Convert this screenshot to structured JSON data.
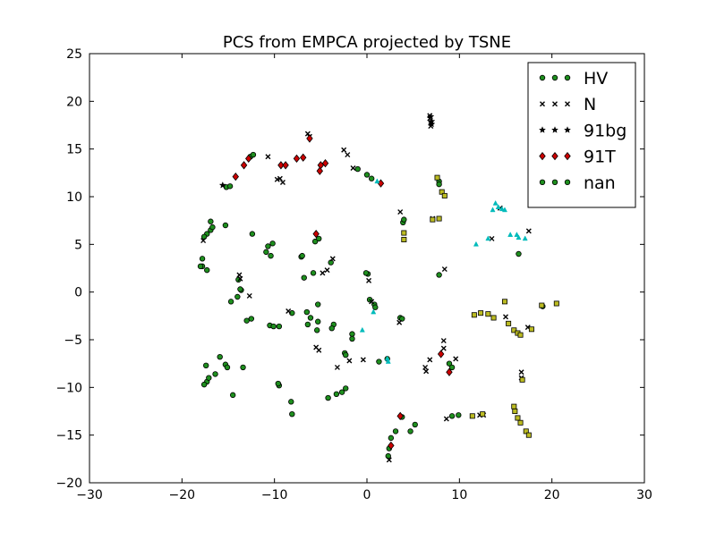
{
  "chart_data": {
    "type": "scatter",
    "title": "PCS from EMPCA projected by TSNE",
    "xlabel": "",
    "ylabel": "",
    "xlim": [
      -30,
      30
    ],
    "ylim": [
      -20,
      25
    ],
    "xticks": [
      -30,
      -20,
      -10,
      0,
      10,
      20,
      30
    ],
    "yticks": [
      -20,
      -15,
      -10,
      -5,
      0,
      5,
      10,
      15,
      20,
      25
    ],
    "grid": false,
    "legend_position": "top-right",
    "legend": [
      "HV",
      "N",
      "91bg",
      "91T",
      "nan"
    ],
    "series": [
      {
        "name": "HV",
        "marker": "circle",
        "color": "#1e8f1e",
        "points": [
          [
            -12.6,
            14.2
          ],
          [
            -12.3,
            14.4
          ],
          [
            -15.2,
            11.0
          ],
          [
            -14.8,
            11.1
          ],
          [
            -12.4,
            6.1
          ],
          [
            -16.9,
            6.5
          ],
          [
            -16.7,
            6.8
          ],
          [
            -16.9,
            7.4
          ],
          [
            -17.3,
            6.1
          ],
          [
            -17.6,
            5.8
          ],
          [
            -15.3,
            7.0
          ],
          [
            -17.8,
            3.5
          ],
          [
            -17.8,
            2.7
          ],
          [
            -17.3,
            2.3
          ],
          [
            -18.0,
            2.7
          ],
          [
            -14.0,
            -0.5
          ],
          [
            -13.6,
            0.2
          ],
          [
            -13.9,
            1.3
          ],
          [
            -13.7,
            0.3
          ],
          [
            -14.7,
            -1.0
          ],
          [
            -13.0,
            -3.0
          ],
          [
            -12.5,
            -2.8
          ],
          [
            -10.7,
            4.8
          ],
          [
            -10.9,
            4.2
          ],
          [
            -10.2,
            5.1
          ],
          [
            -10.4,
            3.8
          ],
          [
            -10.5,
            -3.5
          ],
          [
            -10.1,
            -3.6
          ],
          [
            -9.5,
            -3.6
          ],
          [
            -8.1,
            -2.2
          ],
          [
            -7.1,
            3.7
          ],
          [
            -7.0,
            3.8
          ],
          [
            -6.8,
            1.5
          ],
          [
            -6.5,
            -2.1
          ],
          [
            -6.1,
            -2.7
          ],
          [
            -6.4,
            -3.4
          ],
          [
            -5.6,
            5.3
          ],
          [
            -5.2,
            5.6
          ],
          [
            -5.8,
            2.0
          ],
          [
            -5.3,
            -1.3
          ],
          [
            -5.3,
            -3.1
          ],
          [
            -5.4,
            -4.0
          ],
          [
            -3.9,
            3.1
          ],
          [
            -3.6,
            -3.4
          ],
          [
            -3.8,
            -3.8
          ],
          [
            -1.6,
            -4.4
          ],
          [
            -1.6,
            -4.9
          ],
          [
            -2.4,
            -6.4
          ],
          [
            -2.3,
            -6.6
          ],
          [
            -3.3,
            -10.7
          ],
          [
            -2.7,
            -10.5
          ],
          [
            -2.3,
            -10.1
          ],
          [
            -4.2,
            -11.1
          ],
          [
            -8.2,
            -11.5
          ],
          [
            -8.1,
            -12.8
          ],
          [
            -9.5,
            -9.8
          ],
          [
            -9.6,
            -9.6
          ],
          [
            -16.4,
            -8.6
          ],
          [
            -17.3,
            -9.4
          ],
          [
            -17.6,
            -9.7
          ],
          [
            -17.1,
            -9.0
          ],
          [
            -17.4,
            -7.7
          ],
          [
            -15.9,
            -6.8
          ],
          [
            -15.3,
            -7.6
          ],
          [
            -15.1,
            -7.9
          ],
          [
            -13.4,
            -7.9
          ],
          [
            -14.5,
            -10.8
          ],
          [
            -1.0,
            12.9
          ],
          [
            0.0,
            12.3
          ],
          [
            0.5,
            11.9
          ],
          [
            3.9,
            7.3
          ],
          [
            4.0,
            7.6
          ],
          [
            0.1,
            1.9
          ],
          [
            -0.1,
            2.0
          ],
          [
            0.3,
            -0.8
          ],
          [
            0.8,
            -1.3
          ],
          [
            0.9,
            -1.6
          ],
          [
            1.3,
            -7.3
          ],
          [
            2.2,
            -7.0
          ],
          [
            3.6,
            -2.7
          ],
          [
            3.8,
            -2.8
          ],
          [
            3.8,
            -13.1
          ],
          [
            4.7,
            -14.6
          ],
          [
            5.2,
            -13.9
          ],
          [
            3.1,
            -14.6
          ],
          [
            2.6,
            -15.3
          ],
          [
            2.4,
            -16.4
          ],
          [
            2.3,
            -17.2
          ],
          [
            7.8,
            11.6
          ],
          [
            7.8,
            11.3
          ],
          [
            7.8,
            1.8
          ],
          [
            8.9,
            -7.5
          ],
          [
            9.2,
            -7.9
          ],
          [
            9.2,
            -13.0
          ],
          [
            9.9,
            -12.9
          ],
          [
            16.4,
            4.0
          ],
          [
            19.0,
            -1.5
          ]
        ]
      },
      {
        "name": "N",
        "marker": "x",
        "color": "#000000",
        "points": [
          [
            -17.7,
            5.4
          ],
          [
            -13.8,
            1.8
          ],
          [
            -13.7,
            1.4
          ],
          [
            -12.7,
            -0.4
          ],
          [
            -10.7,
            14.2
          ],
          [
            -9.7,
            11.8
          ],
          [
            -9.4,
            11.9
          ],
          [
            -9.1,
            11.5
          ],
          [
            -8.5,
            -2.0
          ],
          [
            -6.4,
            16.6
          ],
          [
            -6.2,
            16.3
          ],
          [
            -5.5,
            -5.8
          ],
          [
            -5.2,
            -6.1
          ],
          [
            -4.8,
            2.0
          ],
          [
            -4.3,
            2.3
          ],
          [
            -3.7,
            3.5
          ],
          [
            -3.2,
            -7.9
          ],
          [
            -2.5,
            14.9
          ],
          [
            -2.1,
            14.4
          ],
          [
            -1.9,
            -7.2
          ],
          [
            -1.5,
            13.0
          ],
          [
            -0.4,
            -7.1
          ],
          [
            0.2,
            1.2
          ],
          [
            0.5,
            -1.0
          ],
          [
            3.6,
            8.4
          ],
          [
            3.5,
            -3.2
          ],
          [
            6.3,
            -7.9
          ],
          [
            6.4,
            -8.3
          ],
          [
            6.8,
            -7.1
          ],
          [
            6.8,
            18.5
          ],
          [
            6.8,
            18.2
          ],
          [
            6.9,
            17.7
          ],
          [
            6.9,
            17.4
          ],
          [
            7.1,
            7.7
          ],
          [
            8.3,
            -5.1
          ],
          [
            8.3,
            -5.9
          ],
          [
            8.4,
            2.4
          ],
          [
            8.6,
            -13.3
          ],
          [
            9.6,
            -7.0
          ],
          [
            12.2,
            -12.9
          ],
          [
            12.6,
            -12.9
          ],
          [
            13.5,
            5.6
          ],
          [
            14.4,
            8.8
          ],
          [
            15.0,
            -2.6
          ],
          [
            16.7,
            -8.4
          ],
          [
            16.7,
            -9.0
          ],
          [
            17.4,
            -3.7
          ],
          [
            17.5,
            6.4
          ],
          [
            2.4,
            -17.6
          ]
        ]
      },
      {
        "name": "91bg",
        "marker": "star",
        "color": "#000000",
        "points": [
          [
            -15.6,
            11.2
          ],
          [
            6.9,
            18.4
          ],
          [
            7.0,
            17.9
          ],
          [
            7.0,
            17.6
          ]
        ]
      },
      {
        "name": "91T",
        "marker": "diamond",
        "color": "#cc0000",
        "points": [
          [
            -14.2,
            12.1
          ],
          [
            -13.3,
            13.3
          ],
          [
            -12.8,
            14.0
          ],
          [
            -9.3,
            13.3
          ],
          [
            -8.8,
            13.3
          ],
          [
            -7.6,
            14.0
          ],
          [
            -6.9,
            14.1
          ],
          [
            -6.2,
            16.1
          ],
          [
            -5.0,
            13.3
          ],
          [
            -4.5,
            13.5
          ],
          [
            -5.1,
            12.7
          ],
          [
            -5.5,
            6.1
          ],
          [
            1.5,
            11.4
          ],
          [
            2.6,
            -16.1
          ],
          [
            3.6,
            -13.0
          ],
          [
            8.0,
            -6.5
          ],
          [
            8.9,
            -8.4
          ]
        ]
      },
      {
        "name": "nan",
        "marker": "circle",
        "color": "#1e8f1e",
        "points": []
      },
      {
        "name": "",
        "marker": "triangle",
        "color": "#00bbbb",
        "points": [
          [
            11.8,
            5.0
          ],
          [
            13.1,
            5.6
          ],
          [
            13.6,
            8.6
          ],
          [
            13.9,
            9.3
          ],
          [
            14.2,
            8.9
          ],
          [
            14.6,
            8.7
          ],
          [
            14.9,
            8.6
          ],
          [
            15.5,
            6.0
          ],
          [
            16.2,
            6.0
          ],
          [
            16.4,
            5.7
          ],
          [
            17.1,
            5.6
          ],
          [
            1.1,
            11.6
          ],
          [
            0.7,
            -2.1
          ],
          [
            -0.5,
            -4.0
          ],
          [
            2.2,
            -7.0
          ],
          [
            2.3,
            -7.3
          ]
        ]
      },
      {
        "name": "",
        "marker": "square",
        "color": "#bbbb22",
        "points": [
          [
            7.6,
            12.0
          ],
          [
            8.1,
            10.5
          ],
          [
            8.4,
            10.1
          ],
          [
            7.1,
            7.6
          ],
          [
            7.8,
            7.7
          ],
          [
            4.0,
            6.2
          ],
          [
            4.0,
            5.5
          ],
          [
            11.6,
            -2.4
          ],
          [
            12.3,
            -2.2
          ],
          [
            13.1,
            -2.3
          ],
          [
            13.7,
            -2.7
          ],
          [
            14.9,
            -1.0
          ],
          [
            15.3,
            -3.3
          ],
          [
            15.9,
            -4.0
          ],
          [
            16.3,
            -4.3
          ],
          [
            16.6,
            -4.5
          ],
          [
            17.8,
            -3.9
          ],
          [
            18.9,
            -1.4
          ],
          [
            20.5,
            -1.2
          ],
          [
            16.8,
            -9.2
          ],
          [
            11.4,
            -13.0
          ],
          [
            12.5,
            -12.8
          ],
          [
            15.9,
            -12.0
          ],
          [
            16.0,
            -12.5
          ],
          [
            16.3,
            -13.2
          ],
          [
            16.6,
            -13.7
          ],
          [
            17.2,
            -14.6
          ],
          [
            17.5,
            -15.0
          ]
        ]
      }
    ]
  }
}
